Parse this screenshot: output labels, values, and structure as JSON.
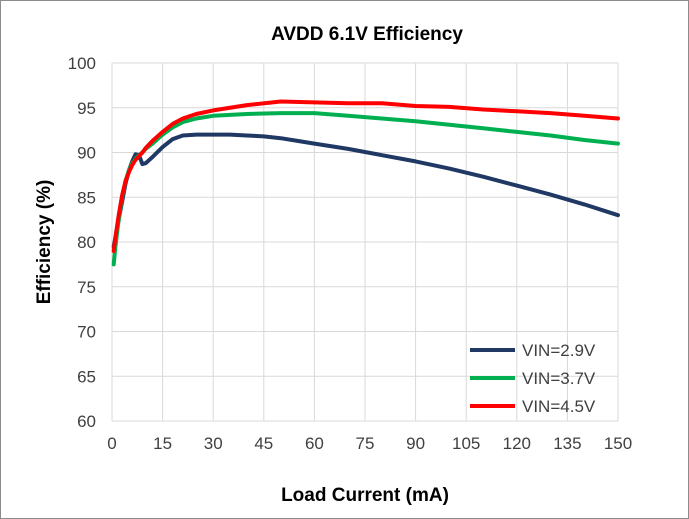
{
  "chart_data": {
    "type": "line",
    "title": "AVDD 6.1V Efficiency",
    "xlabel": "Load Current (mA)",
    "ylabel": "Efficiency (%)",
    "xlim": [
      0,
      150
    ],
    "ylim": [
      60,
      100
    ],
    "xticks": [
      0,
      15,
      30,
      45,
      60,
      75,
      90,
      105,
      120,
      135,
      150
    ],
    "yticks": [
      60,
      65,
      70,
      75,
      80,
      85,
      90,
      95,
      100
    ],
    "grid": true,
    "legend_position": "bottom-right",
    "series": [
      {
        "name": "VIN=2.9V",
        "color": "#203864",
        "points": [
          [
            0.5,
            79.5
          ],
          [
            1,
            80.5
          ],
          [
            2,
            82.5
          ],
          [
            3,
            84.5
          ],
          [
            4,
            86.5
          ],
          [
            5,
            88
          ],
          [
            6,
            89
          ],
          [
            7,
            89.8
          ],
          [
            8,
            89.7
          ],
          [
            9,
            88.7
          ],
          [
            10,
            88.8
          ],
          [
            12,
            89.5
          ],
          [
            15,
            90.6
          ],
          [
            18,
            91.5
          ],
          [
            21,
            91.9
          ],
          [
            25,
            92
          ],
          [
            30,
            92
          ],
          [
            35,
            92
          ],
          [
            40,
            91.9
          ],
          [
            45,
            91.8
          ],
          [
            50,
            91.6
          ],
          [
            55,
            91.3
          ],
          [
            60,
            91
          ],
          [
            70,
            90.4
          ],
          [
            80,
            89.7
          ],
          [
            90,
            89
          ],
          [
            100,
            88.2
          ],
          [
            110,
            87.3
          ],
          [
            120,
            86.3
          ],
          [
            130,
            85.3
          ],
          [
            140,
            84.2
          ],
          [
            150,
            83
          ]
        ]
      },
      {
        "name": "VIN=3.7V",
        "color": "#00b050",
        "points": [
          [
            0.5,
            77.5
          ],
          [
            1,
            79.5
          ],
          [
            2,
            82.5
          ],
          [
            3,
            85
          ],
          [
            4,
            86.8
          ],
          [
            5,
            88
          ],
          [
            6,
            88.8
          ],
          [
            7,
            89.3
          ],
          [
            8,
            89.7
          ],
          [
            9,
            90
          ],
          [
            10,
            90.4
          ],
          [
            12,
            91
          ],
          [
            15,
            92
          ],
          [
            18,
            92.8
          ],
          [
            21,
            93.4
          ],
          [
            25,
            93.8
          ],
          [
            30,
            94.1
          ],
          [
            40,
            94.3
          ],
          [
            50,
            94.4
          ],
          [
            60,
            94.4
          ],
          [
            70,
            94.1
          ],
          [
            80,
            93.8
          ],
          [
            90,
            93.5
          ],
          [
            100,
            93.1
          ],
          [
            110,
            92.7
          ],
          [
            120,
            92.3
          ],
          [
            130,
            91.9
          ],
          [
            140,
            91.4
          ],
          [
            150,
            91
          ]
        ]
      },
      {
        "name": "VIN=4.5V",
        "color": "#ff0000",
        "points": [
          [
            0.5,
            79
          ],
          [
            1,
            80.5
          ],
          [
            2,
            83
          ],
          [
            3,
            85.2
          ],
          [
            4,
            86.8
          ],
          [
            5,
            87.8
          ],
          [
            6,
            88.6
          ],
          [
            7,
            89.2
          ],
          [
            8,
            89.6
          ],
          [
            9,
            90
          ],
          [
            10,
            90.5
          ],
          [
            12,
            91.3
          ],
          [
            15,
            92.3
          ],
          [
            18,
            93.2
          ],
          [
            21,
            93.8
          ],
          [
            25,
            94.3
          ],
          [
            30,
            94.7
          ],
          [
            40,
            95.3
          ],
          [
            50,
            95.7
          ],
          [
            60,
            95.6
          ],
          [
            70,
            95.5
          ],
          [
            80,
            95.5
          ],
          [
            90,
            95.2
          ],
          [
            100,
            95.1
          ],
          [
            110,
            94.8
          ],
          [
            120,
            94.6
          ],
          [
            130,
            94.4
          ],
          [
            140,
            94.1
          ],
          [
            150,
            93.8
          ]
        ]
      }
    ]
  }
}
